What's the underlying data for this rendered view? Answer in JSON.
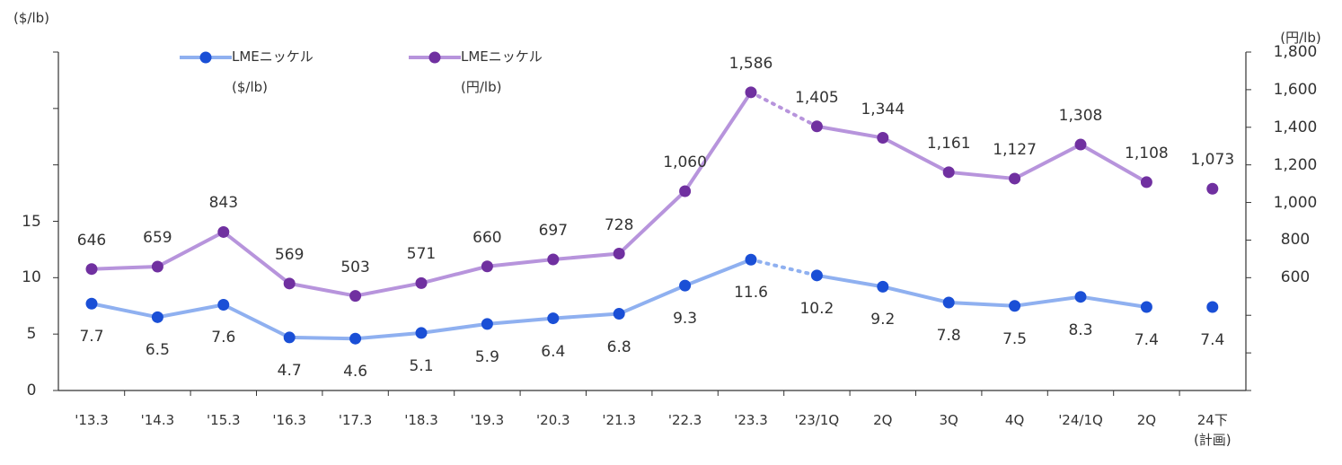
{
  "chart_data": {
    "type": "line",
    "y_label": "($/lb)",
    "y2_label": "(円/lb)",
    "categories": [
      "'13.3",
      "'14.3",
      "'15.3",
      "'16.3",
      "'17.3",
      "'18.3",
      "'19.3",
      "'20.3",
      "'21.3",
      "'22.3",
      "'23.3",
      "'23/1Q",
      "2Q",
      "3Q",
      "4Q",
      "'24/1Q",
      "2Q",
      "24下\n(計画)"
    ],
    "series": [
      {
        "name": "LMEニッケル\n($/lb)",
        "color": "#8fb0f0",
        "marker_color": "#1a4fd6",
        "axis": "y",
        "values": [
          7.7,
          6.5,
          7.6,
          4.7,
          4.6,
          5.1,
          5.9,
          6.4,
          6.8,
          9.3,
          11.6,
          10.2,
          9.2,
          7.8,
          7.5,
          8.3,
          7.4,
          7.4
        ]
      },
      {
        "name": "LMEニッケル\n(円/lb)",
        "color": "#b794dc",
        "marker_color": "#7030a0",
        "axis": "y2",
        "values": [
          646,
          659,
          843,
          569,
          503,
          571,
          660,
          697,
          728,
          1060,
          1586,
          1405,
          1344,
          1161,
          1127,
          1308,
          1108,
          1073
        ],
        "value_labels": [
          "646",
          "659",
          "843",
          "569",
          "503",
          "571",
          "660",
          "697",
          "728",
          "1,060",
          "1,586",
          "1,405",
          "1,344",
          "1,161",
          "1,127",
          "1,308",
          "1,108",
          "1,073"
        ]
      }
    ],
    "ylim": [
      0,
      30
    ],
    "yticks": [
      0,
      5,
      10,
      15,
      {
        "value": 20,
        "label": null
      },
      {
        "value": 25,
        "label": null
      },
      {
        "value": 30,
        "label": null
      }
    ],
    "y2lim": [
      0,
      1800
    ],
    "y2ticks": [
      {
        "value": 0,
        "label": null
      },
      {
        "value": 200,
        "label": null
      },
      {
        "value": 400,
        "label": null
      },
      600,
      800,
      {
        "value": 1000,
        "label": "1,000"
      },
      {
        "value": 1200,
        "label": "1,200"
      },
      {
        "value": 1400,
        "label": "1,400"
      },
      {
        "value": 1600,
        "label": "1,600"
      },
      {
        "value": 1800,
        "label": "1,800"
      }
    ],
    "legend": "top-left"
  }
}
